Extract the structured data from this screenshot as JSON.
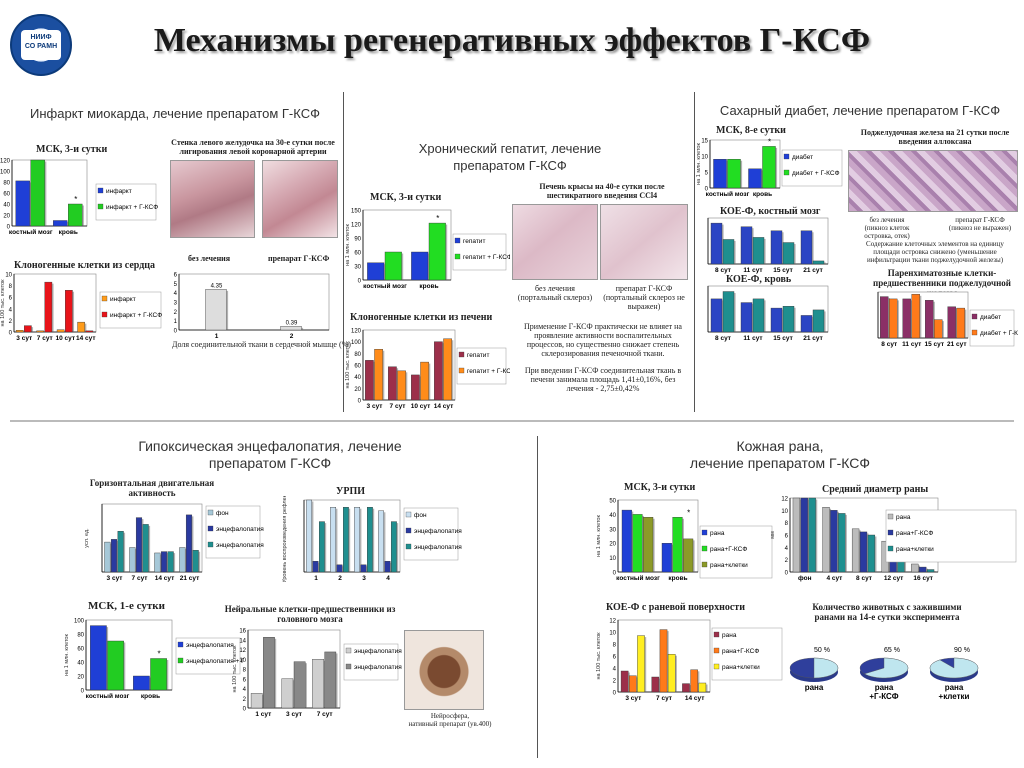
{
  "title": "Механизмы регенеративных эффектов Г-КСФ",
  "logo": {
    "line1": "НИИФ",
    "line2": "СО РАМН"
  },
  "sections": {
    "mi": {
      "title": "Инфаркт миокарда, лечение препаратом Г-КСФ",
      "photo_caption": "Стенка левого желудочка на 30-е сутки после лигирования левой коронарной артерии",
      "photo_left": "без лечения",
      "photo_right": "препарат Г-КСФ",
      "bar_caption": "Доля соединительной ткани в сердечной мышце (%)"
    },
    "hep": {
      "title_line1": "Хронический гепатит, лечение",
      "title_line2": "препаратом Г-КСФ",
      "photo_caption_line1": "Печень крысы на 40-е сутки после",
      "photo_caption_line2": "шестикратного введения CCl4",
      "photo_left_l1": "без лечения",
      "photo_left_l2": "(портальный склероз)",
      "photo_right_l1": "препарат Г-КСФ",
      "photo_right_l2": "(портальный склероз не выражен)",
      "note1": "Применение Г-КСФ практически не влияет на проявление активности воспалительных процессов, но существенно снижает степень склерозирования печеночной ткани.",
      "note2": "При введении Г-КСФ соединительная ткань в печени занимала площадь 1,41±0,16%, без лечения - 2,75±0,42%"
    },
    "diab": {
      "title": "Сахарный диабет, лечение препаратом Г-КСФ",
      "photo_caption": "Поджелудочная железа на 21 сутки после введения аллоксана",
      "photo_left_l1": "без лечения",
      "photo_left_l2": "(пикноз клеток островка, отек)",
      "photo_right_l1": "препарат Г-КСФ",
      "photo_right_l2": "(пикноз не выражен)",
      "note": "Содержание клеточных элементов на единицу площади островка снижено (уменьшение инфильтрации ткани поджелудочной железы)"
    },
    "hypo": {
      "title_line1": "Гипоксическая энцефалопатия, лечение",
      "title_line2": "препаратом Г-КСФ",
      "photo_caption_line1": "Нейросфера,",
      "photo_caption_line2": "нативный препарат (ув.400)"
    },
    "skin": {
      "title_line1": "Кожная рана,",
      "title_line2": "лечение препаратом Г-КСФ"
    }
  },
  "chart_data": [
    {
      "id": "mi_msk",
      "type": "bar",
      "title": "МСК, 3-и сутки",
      "categories": [
        "костный мозг",
        "кровь"
      ],
      "series": [
        {
          "name": "инфаркт",
          "color": "#1f3fd6",
          "values": [
            82,
            10
          ]
        },
        {
          "name": "инфаркт + Г-КСФ",
          "color": "#22cc22",
          "values": [
            120,
            40
          ]
        }
      ],
      "ylim": [
        0,
        120
      ],
      "yticks": [
        "0",
        "20",
        "40",
        "60",
        "80",
        "100",
        "120"
      ],
      "stars": [
        "кровь"
      ]
    },
    {
      "id": "mi_clono",
      "type": "bar",
      "title": "Клоногенные клетки из сердца",
      "ylabel": "на 100 тыс. клеток",
      "categories": [
        "3 сут",
        "7 сут",
        "10 сут",
        "14 сут"
      ],
      "series": [
        {
          "name": "инфаркт",
          "color": "#ff9c1a",
          "values": [
            0.3,
            0.2,
            0.4,
            1.7
          ]
        },
        {
          "name": "инфаркт + Г-КСФ",
          "color": "#e8141a",
          "values": [
            1.1,
            8.6,
            7.2,
            0.2
          ]
        }
      ],
      "ylim": [
        0,
        10
      ],
      "yticks": [
        "0",
        "2",
        "4",
        "6",
        "8",
        "10"
      ]
    },
    {
      "id": "mi_fibro",
      "type": "bar",
      "title": "",
      "categories": [
        "1",
        "2"
      ],
      "values": [
        4.35,
        0.39
      ],
      "data_labels": [
        "4.35",
        "0.39"
      ],
      "ylim": [
        0,
        6
      ],
      "yticks": [
        "0",
        "1",
        "2",
        "3",
        "4",
        "5",
        "6"
      ]
    },
    {
      "id": "hep_msk",
      "type": "bar",
      "title": "МСК, 3-и сутки",
      "ylabel": "на 1 млн. клеток",
      "categories": [
        "костный мозг",
        "кровь"
      ],
      "series": [
        {
          "name": "гепатит",
          "color": "#1f3fd6",
          "values": [
            37,
            60
          ]
        },
        {
          "name": "гепатит + Г-КСФ",
          "color": "#22dd22",
          "values": [
            60,
            122
          ]
        }
      ],
      "ylim": [
        0,
        150
      ],
      "yticks": [
        "0",
        "30",
        "60",
        "90",
        "120",
        "150"
      ],
      "stars": [
        "кровь"
      ]
    },
    {
      "id": "hep_clono",
      "type": "bar",
      "title": "Клоногенные клетки из печени",
      "ylabel": "на 100 тыс. клеток",
      "categories": [
        "3 сут",
        "7 сут",
        "10 сут",
        "14 сут"
      ],
      "series": [
        {
          "name": "гепатит",
          "color": "#9c2f4a",
          "values": [
            68,
            57,
            43,
            100
          ]
        },
        {
          "name": "гепатит + Г-КСФ",
          "color": "#ff8c1a",
          "values": [
            87,
            50,
            65,
            105
          ]
        }
      ],
      "ylim": [
        0,
        120
      ],
      "yticks": [
        "0",
        "20",
        "40",
        "60",
        "80",
        "100",
        "120"
      ]
    },
    {
      "id": "diab_msk",
      "type": "bar",
      "title": "МСК, 8-е сутки",
      "ylabel": "на 1 млн. клеток",
      "categories": [
        "костный мозг",
        "кровь"
      ],
      "series": [
        {
          "name": "диабет",
          "color": "#1f3fd6",
          "values": [
            9,
            6
          ]
        },
        {
          "name": "диабет + Г-КСФ",
          "color": "#22dd22",
          "values": [
            9,
            13
          ]
        }
      ],
      "ylim": [
        0,
        15
      ],
      "yticks": [
        "0",
        "5",
        "10",
        "15"
      ],
      "stars": [
        "кровь"
      ]
    },
    {
      "id": "diab_koe_bm",
      "type": "bar",
      "title": "КОЕ-Ф, костный мозг",
      "categories": [
        "8 сут",
        "11 сут",
        "15 сут",
        "21 сут"
      ],
      "series": [
        {
          "name": "",
          "color": "#2b45c4",
          "values": [
            8,
            7.3,
            6.5,
            6.5
          ]
        },
        {
          "name": "",
          "color": "#1f8f8f",
          "values": [
            4.8,
            5.2,
            4.2,
            0.6
          ]
        }
      ],
      "ylim": [
        0,
        9
      ]
    },
    {
      "id": "diab_koe_blood",
      "type": "bar",
      "title": "КОЕ-Ф, кровь",
      "categories": [
        "8 сут",
        "11 сут",
        "15 сут",
        "21 сут"
      ],
      "series": [
        {
          "name": "",
          "color": "#2b45c4",
          "values": [
            18,
            16,
            13,
            9
          ]
        },
        {
          "name": "",
          "color": "#1f8f8f",
          "values": [
            22,
            18,
            14,
            12
          ]
        }
      ],
      "ylim": [
        0,
        25
      ]
    },
    {
      "id": "diab_paren",
      "type": "bar",
      "title": "Паренхиматозные клетки-предшественники поджелудочной железы",
      "categories": [
        "8 сут",
        "11 сут",
        "15 сут",
        "21 сут"
      ],
      "series": [
        {
          "name": "диабет",
          "color": "#8b2f66",
          "values": [
            9,
            8.5,
            8.2,
            6.8
          ]
        },
        {
          "name": "диабет + Г-КСФ",
          "color": "#ff7a1a",
          "values": [
            8.5,
            9.5,
            4,
            6.5
          ]
        }
      ],
      "ylim": [
        0,
        10
      ]
    },
    {
      "id": "hypo_motor",
      "type": "bar",
      "title": "Горизонтальная двигательная активность",
      "ylabel": "усл. ед.",
      "categories": [
        "3 сут",
        "7 сут",
        "14 сут",
        "21 сут"
      ],
      "series": [
        {
          "name": "фон",
          "color": "#a6c8d8",
          "values": [
            11,
            9,
            7,
            9
          ]
        },
        {
          "name": "энцефалопатия",
          "color": "#2a3aa0",
          "values": [
            12,
            20,
            7.5,
            21
          ]
        },
        {
          "name": "энцефалопатия + Г-КСФ",
          "color": "#1f8f8f",
          "values": [
            15,
            17.5,
            7.5,
            8
          ]
        }
      ],
      "ylim": [
        0,
        25
      ]
    },
    {
      "id": "hypo_urpi",
      "type": "bar",
      "title": "УРПИ",
      "ylabel": "Уровень воспроизведения рефлекса",
      "categories": [
        "1",
        "2",
        "3",
        "4"
      ],
      "series": [
        {
          "name": "фон",
          "color": "#c8dff0",
          "values": [
            1,
            0.9,
            0.9,
            0.85
          ]
        },
        {
          "name": "энцефалопатия",
          "color": "#2a3aa0",
          "values": [
            0.15,
            0.1,
            0.1,
            0.15
          ]
        },
        {
          "name": "энцефалопатия + Г-КСФ",
          "color": "#1f8f8f",
          "values": [
            0.7,
            0.9,
            0.9,
            0.7
          ]
        }
      ],
      "ylim": [
        0,
        1
      ]
    },
    {
      "id": "hypo_msk",
      "type": "bar",
      "title": "МСК, 1-е сутки",
      "ylabel": "на 1 млн. клеток",
      "categories": [
        "костный мозг",
        "кровь"
      ],
      "series": [
        {
          "name": "энцефалопатия",
          "color": "#1f3fd6",
          "values": [
            92,
            20
          ]
        },
        {
          "name": "энцефалопатия + Г-КСФ",
          "color": "#22cc22",
          "values": [
            70,
            45
          ]
        }
      ],
      "ylim": [
        0,
        100
      ],
      "yticks": [
        "0",
        "20",
        "40",
        "60",
        "80",
        "100"
      ],
      "stars": [
        "кровь"
      ]
    },
    {
      "id": "hypo_neural",
      "type": "bar",
      "title": "Нейральные клетки-предшественники из головного мозга",
      "ylabel": "на 100 тыс. клеток",
      "categories": [
        "1 сут",
        "3 сут",
        "7 сут"
      ],
      "series": [
        {
          "name": "энцефалопатия",
          "color": "#cfcfcf",
          "values": [
            3,
            6,
            10
          ]
        },
        {
          "name": "энцефалопатия + Г-КСФ",
          "color": "#888888",
          "values": [
            14.5,
            9.5,
            11.5
          ]
        }
      ],
      "ylim": [
        0,
        16
      ],
      "yticks": [
        "0",
        "2",
        "4",
        "6",
        "8",
        "10",
        "12",
        "14",
        "16"
      ]
    },
    {
      "id": "skin_msk",
      "type": "bar",
      "title": "МСК, 3-и сутки",
      "ylabel": "на 1 млн. клеток",
      "categories": [
        "костный мозг",
        "кровь"
      ],
      "series": [
        {
          "name": "рана",
          "color": "#1f3fd6",
          "values": [
            43,
            20
          ]
        },
        {
          "name": "рана+Г-КСФ",
          "color": "#22dd22",
          "values": [
            40,
            38
          ]
        },
        {
          "name": "рана+клетки",
          "color": "#8c9a28",
          "values": [
            38,
            23
          ]
        }
      ],
      "ylim": [
        0,
        50
      ],
      "yticks": [
        "0",
        "10",
        "20",
        "30",
        "40",
        "50"
      ],
      "stars": [
        "кровь"
      ]
    },
    {
      "id": "skin_diam",
      "type": "bar",
      "title": "Средний диаметр раны",
      "ylabel": "мм",
      "categories": [
        "фон",
        "4 сут",
        "8 сут",
        "12 сут",
        "16 сут"
      ],
      "series": [
        {
          "name": "рана",
          "color": "#bcbcbc",
          "values": [
            12,
            10.5,
            7,
            5,
            1.3
          ]
        },
        {
          "name": "рана+Г-КСФ",
          "color": "#2a3aa0",
          "values": [
            12,
            10,
            6.5,
            3.5,
            0.8
          ]
        },
        {
          "name": "рана+клетки",
          "color": "#1f8f8f",
          "values": [
            12,
            9.5,
            6,
            3,
            0.4
          ]
        }
      ],
      "ylim": [
        0,
        12
      ],
      "yticks": [
        "0",
        "2",
        "4",
        "6",
        "8",
        "10",
        "12"
      ]
    },
    {
      "id": "skin_koe",
      "type": "bar",
      "title": "КОЕ-Ф с раневой поверхности",
      "ylabel": "на 100 тыс. клеток",
      "categories": [
        "3 сут",
        "7 сут",
        "14 сут"
      ],
      "series": [
        {
          "name": "рана",
          "color": "#9c2f4a",
          "values": [
            3.5,
            2.5,
            1.4
          ]
        },
        {
          "name": "рана+Г-КСФ",
          "color": "#ff7a1a",
          "values": [
            2.7,
            10.4,
            3.7
          ]
        },
        {
          "name": "рана+клетки",
          "color": "#ffee22",
          "values": [
            9.4,
            6.3,
            1.5
          ]
        }
      ],
      "ylim": [
        0,
        12
      ],
      "yticks": [
        "0",
        "2",
        "4",
        "6",
        "8",
        "10",
        "12"
      ]
    },
    {
      "id": "skin_pies",
      "type": "pie",
      "title": "Количество животных с зажившими ранами на 14-е сутки эксперимента",
      "slices": [
        {
          "label": "рана",
          "value": 50,
          "value_label": "50 %"
        },
        {
          "label": "рана +Г-КСФ",
          "value": 65,
          "value_label": "65 %"
        },
        {
          "label": "рана +клетки",
          "value": 90,
          "value_label": "90 %"
        }
      ]
    }
  ]
}
